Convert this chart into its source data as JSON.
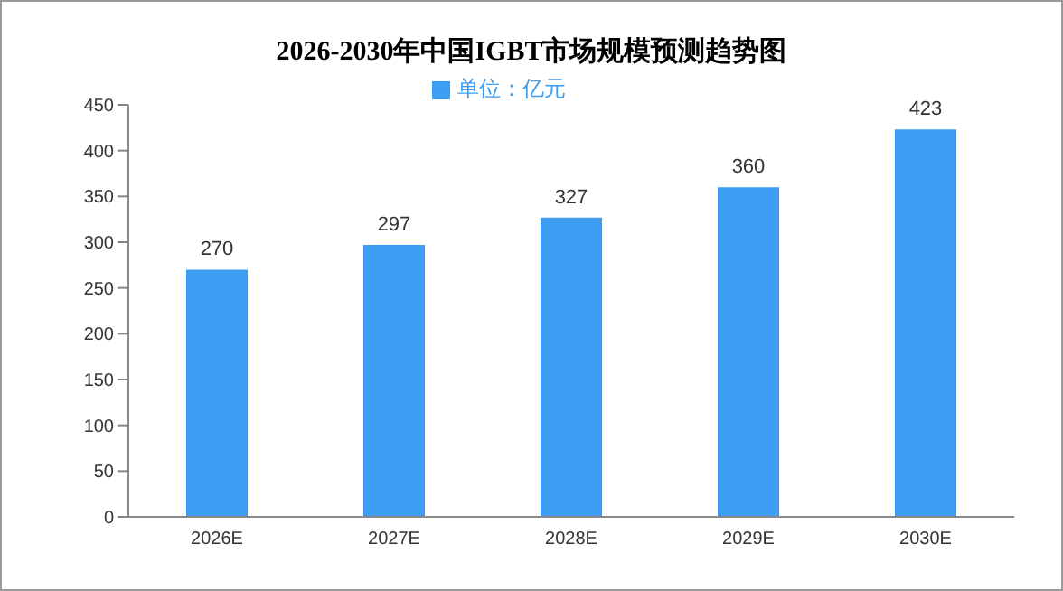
{
  "chart_data": {
    "type": "bar",
    "title": "2026-2030年中国IGBT市场规模预测趋势图",
    "categories": [
      "2026E",
      "2027E",
      "2028E",
      "2029E",
      "2030E"
    ],
    "series": [
      {
        "name": "单位：亿元",
        "color": "#3d9df3",
        "values": [
          270,
          297,
          327,
          360,
          423
        ]
      }
    ],
    "ylim": [
      0,
      450
    ],
    "yticks": [
      0,
      50,
      100,
      150,
      200,
      250,
      300,
      350,
      400,
      450
    ],
    "grid": false,
    "legend": "top",
    "data_labels": true
  }
}
